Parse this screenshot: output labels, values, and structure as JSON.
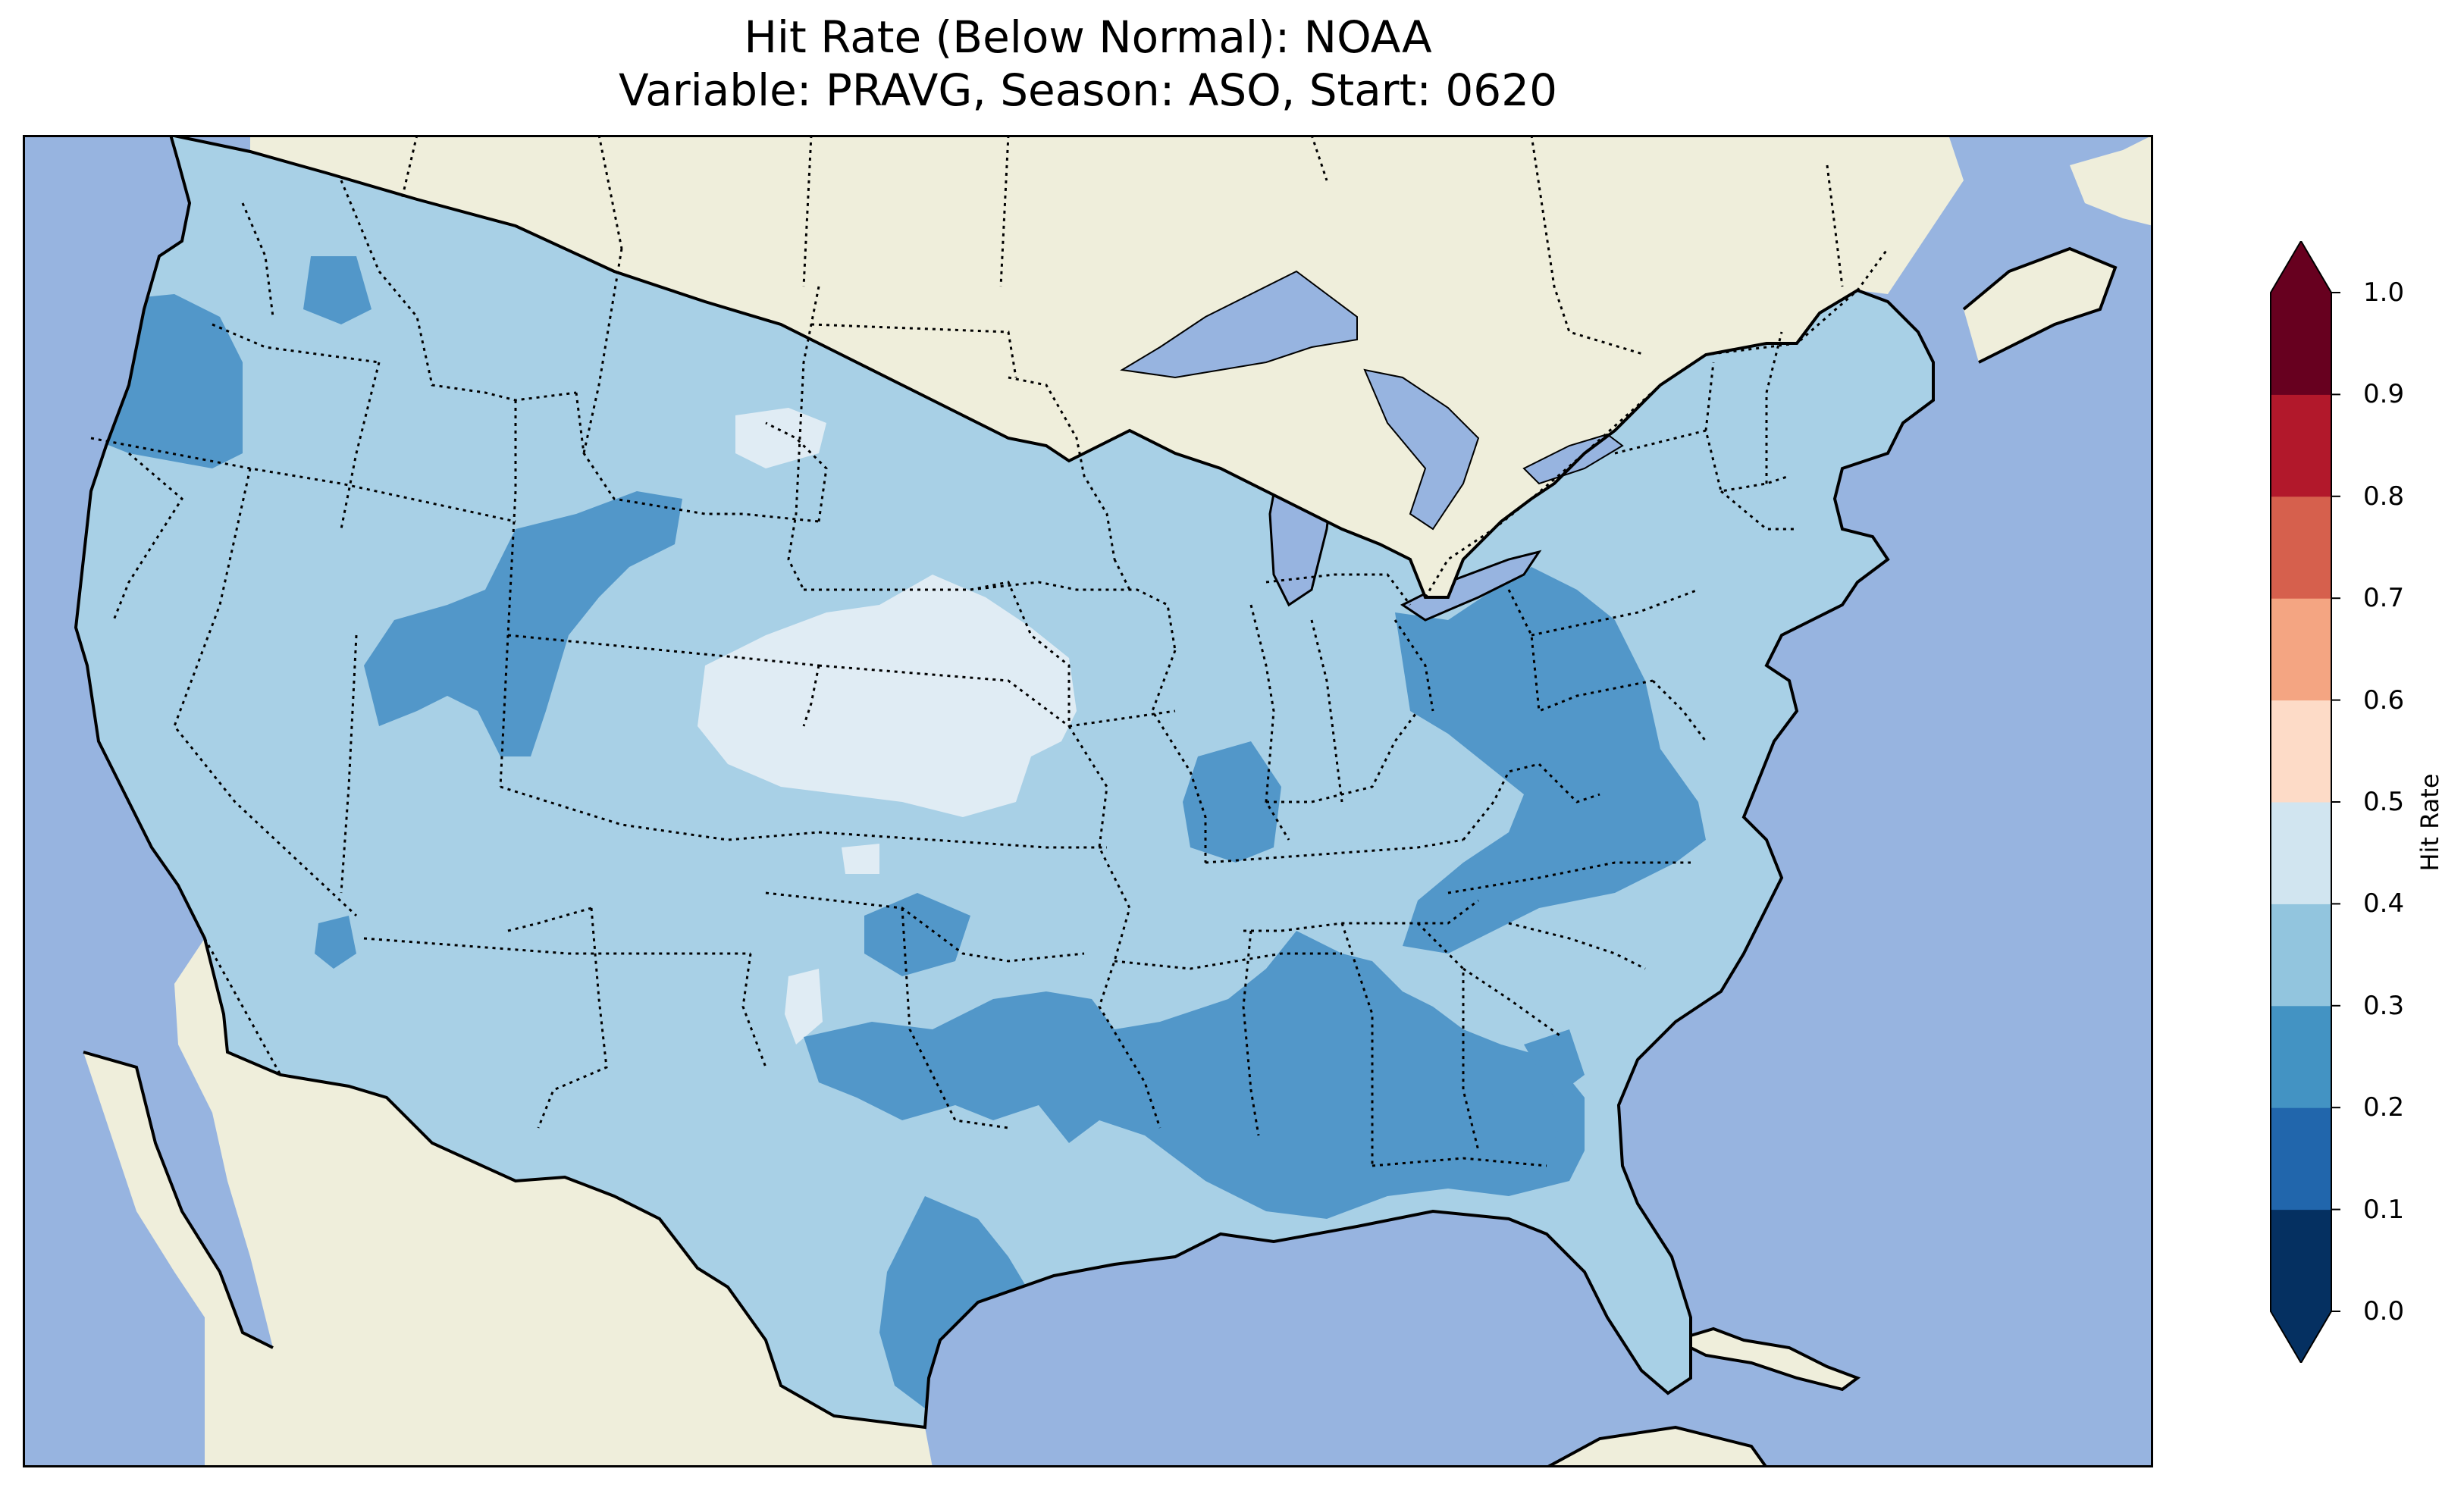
{
  "title": {
    "line1": "Hit Rate (Below Normal): NOAA",
    "line2": "Variable: PRAVG, Season: ASO, Start: 0620"
  },
  "colors": {
    "ocean": "#97b4e0",
    "land": "#efeedb",
    "class_0_2_0_3": "#5297c9",
    "class_0_3_0_4": "#a8d0e6",
    "class_0_4_0_5": "#e0ecf4"
  },
  "colorbar": {
    "label": "Hit Rate",
    "ticks": [
      "0.0",
      "0.1",
      "0.2",
      "0.3",
      "0.4",
      "0.5",
      "0.6",
      "0.7",
      "0.8",
      "0.9",
      "1.0"
    ],
    "bins": [
      {
        "range": [
          0.0,
          0.1
        ],
        "color": "#053061"
      },
      {
        "range": [
          0.1,
          0.2
        ],
        "color": "#2166ac"
      },
      {
        "range": [
          0.2,
          0.3
        ],
        "color": "#4393c3"
      },
      {
        "range": [
          0.3,
          0.4
        ],
        "color": "#92c5de"
      },
      {
        "range": [
          0.4,
          0.5
        ],
        "color": "#d1e5f0"
      },
      {
        "range": [
          0.5,
          0.6
        ],
        "color": "#fddbc7"
      },
      {
        "range": [
          0.6,
          0.7
        ],
        "color": "#f4a582"
      },
      {
        "range": [
          0.7,
          0.8
        ],
        "color": "#d6604d"
      },
      {
        "range": [
          0.8,
          0.9
        ],
        "color": "#b2182b"
      },
      {
        "range": [
          0.9,
          1.0
        ],
        "color": "#67001f"
      }
    ],
    "extend": "both"
  }
}
